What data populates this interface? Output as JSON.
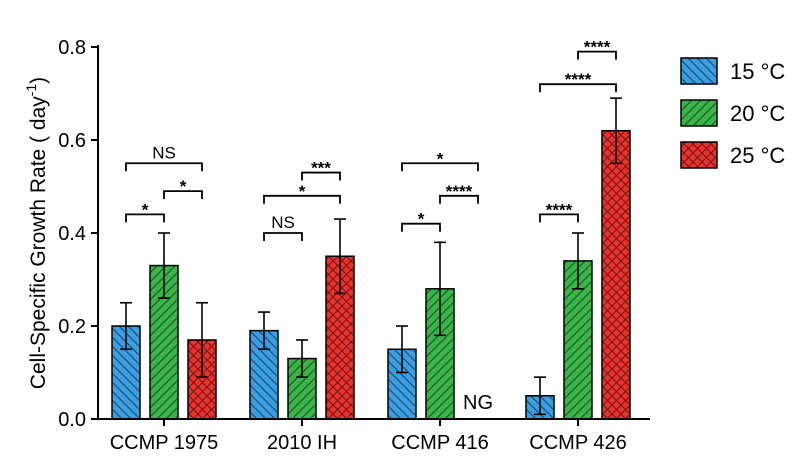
{
  "chart_data": {
    "type": "bar",
    "ylabel": "Cell-Specific Growth Rate ( day",
    "ylabel_sup": "-1",
    "ylabel_close": ")",
    "ylim": [
      0,
      0.8
    ],
    "yticks": [
      "0.0",
      "0.2",
      "0.4",
      "0.6",
      "0.8"
    ],
    "categories": [
      "CCMP 1975",
      "2010 IH",
      "CCMP 416",
      "CCMP 426"
    ],
    "legend_position": "right",
    "series": [
      {
        "name": "15 °C",
        "color": "#3a9ee0",
        "pattern": "hatch-back",
        "values": [
          0.2,
          0.19,
          0.15,
          0.05
        ],
        "errors": [
          0.05,
          0.04,
          0.05,
          0.04
        ]
      },
      {
        "name": "20 °C",
        "color": "#3bb54a",
        "pattern": "hatch-forward",
        "values": [
          0.33,
          0.13,
          0.28,
          0.34
        ],
        "errors": [
          0.07,
          0.04,
          0.1,
          0.06
        ]
      },
      {
        "name": "25 °C",
        "color": "#e8332e",
        "pattern": "crosshatch",
        "values": [
          0.17,
          0.35,
          null,
          0.62
        ],
        "errors": [
          0.08,
          0.08,
          null,
          0.07
        ]
      }
    ],
    "no_growth_label": {
      "category": 2,
      "series": 2,
      "text": "NG"
    },
    "significance": [
      {
        "category": 0,
        "from": 0,
        "to": 1,
        "y": 0.44,
        "label": "*"
      },
      {
        "category": 0,
        "from": 1,
        "to": 2,
        "y": 0.49,
        "label": "*"
      },
      {
        "category": 0,
        "from": 0,
        "to": 2,
        "y": 0.55,
        "label": "NS"
      },
      {
        "category": 1,
        "from": 0,
        "to": 1,
        "y": 0.4,
        "label": "NS"
      },
      {
        "category": 1,
        "from": 0,
        "to": 2,
        "y": 0.48,
        "label": "*"
      },
      {
        "category": 1,
        "from": 1,
        "to": 2,
        "y": 0.53,
        "label": "***"
      },
      {
        "category": 2,
        "from": 0,
        "to": 1,
        "y": 0.42,
        "label": "*"
      },
      {
        "category": 2,
        "from": 1,
        "to": 2,
        "y": 0.48,
        "label": "****"
      },
      {
        "category": 2,
        "from": 0,
        "to": 2,
        "y": 0.55,
        "label": "*"
      },
      {
        "category": 3,
        "from": 0,
        "to": 1,
        "y": 0.44,
        "label": "****"
      },
      {
        "category": 3,
        "from": 0,
        "to": 2,
        "y": 0.72,
        "label": "****"
      },
      {
        "category": 3,
        "from": 1,
        "to": 2,
        "y": 0.79,
        "label": "****"
      }
    ]
  }
}
